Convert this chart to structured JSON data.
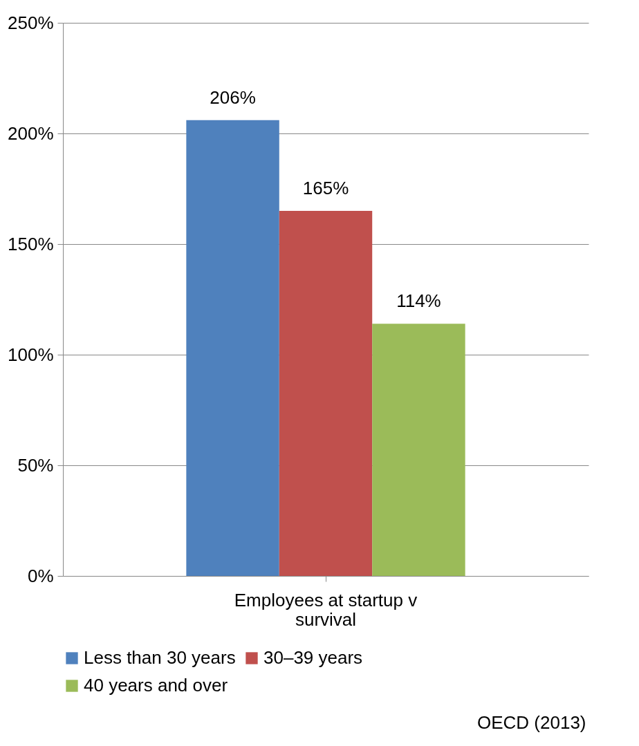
{
  "chart_data": {
    "type": "bar",
    "categories": [
      "Employees at startup v survival"
    ],
    "series": [
      {
        "name": "Less than 30 years",
        "color": "#4f81bd",
        "values": [
          206
        ],
        "value_labels": [
          "206%"
        ]
      },
      {
        "name": "30–39 years",
        "color": "#c0504d",
        "values": [
          165
        ],
        "value_labels": [
          "165%"
        ]
      },
      {
        "name": "40 years and over",
        "color": "#9bbb59",
        "values": [
          114
        ],
        "value_labels": [
          "114%"
        ]
      }
    ],
    "ylim": [
      0,
      250
    ],
    "yticks": [
      {
        "value": 0,
        "label": "0%"
      },
      {
        "value": 50,
        "label": "50%"
      },
      {
        "value": 100,
        "label": "100%"
      },
      {
        "value": 150,
        "label": "150%"
      },
      {
        "value": 200,
        "label": "200%"
      },
      {
        "value": 250,
        "label": "250%"
      }
    ],
    "grid": "y",
    "legend": "bottom",
    "annotations": [
      "OECD (2013)"
    ]
  }
}
